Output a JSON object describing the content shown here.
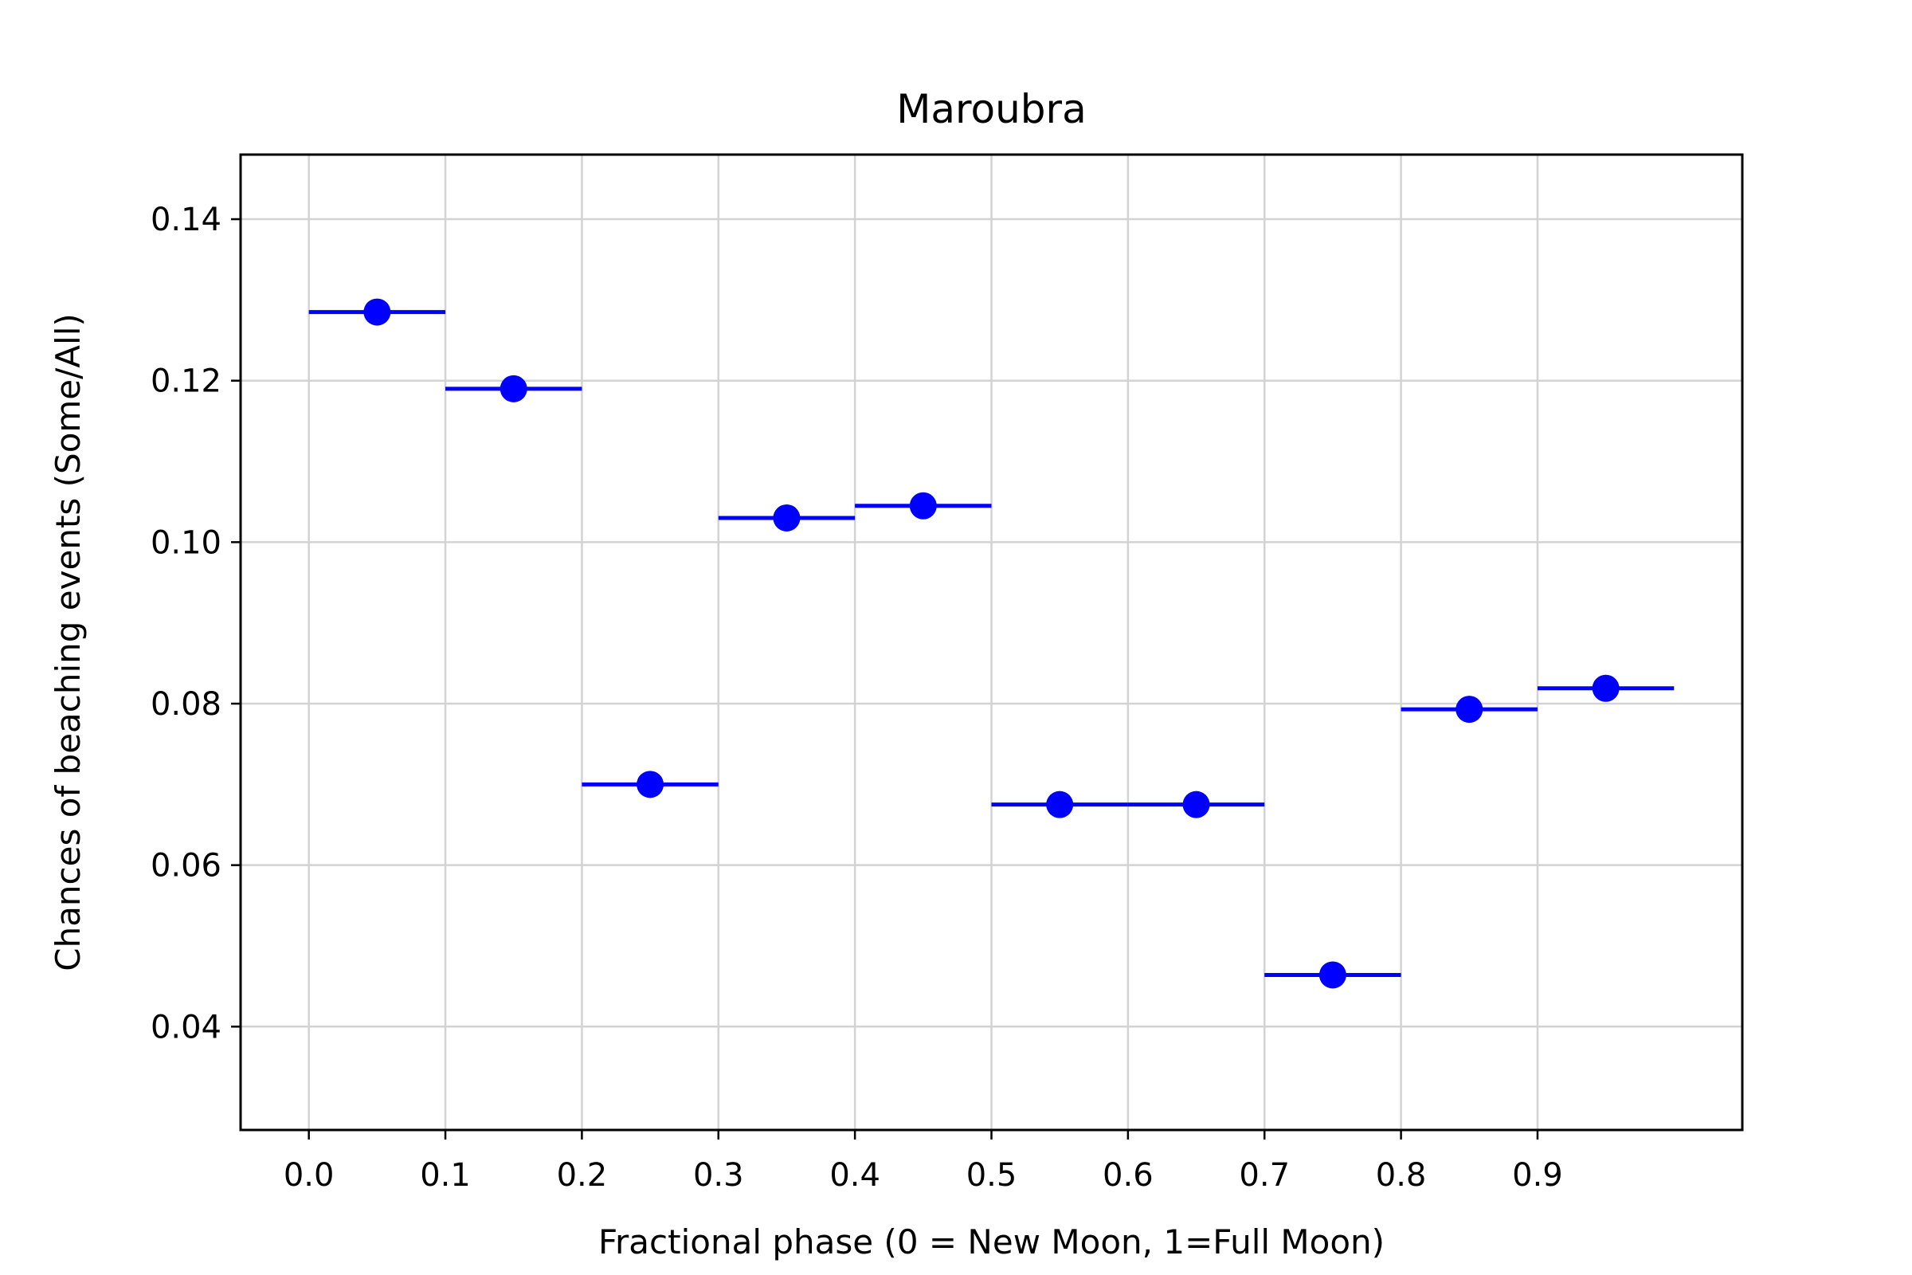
{
  "chart_data": {
    "type": "scatter",
    "title": "Maroubra",
    "xlabel": "Fractional phase (0 = New Moon, 1=Full Moon)",
    "ylabel": "Chances of beaching events (Some/All)",
    "xlim": [
      -0.05,
      1.05
    ],
    "ylim": [
      0.0272,
      0.148
    ],
    "xticks": [
      0.0,
      0.1,
      0.2,
      0.3,
      0.4,
      0.5,
      0.6,
      0.7,
      0.8,
      0.9
    ],
    "xtick_labels": [
      "0.0",
      "0.1",
      "0.2",
      "0.3",
      "0.4",
      "0.5",
      "0.6",
      "0.7",
      "0.8",
      "0.9"
    ],
    "yticks": [
      0.04,
      0.06,
      0.08,
      0.1,
      0.12,
      0.14
    ],
    "ytick_labels": [
      "0.04",
      "0.06",
      "0.08",
      "0.10",
      "0.12",
      "0.14"
    ],
    "grid": true,
    "color": "#0000ff",
    "x": [
      0.05,
      0.15,
      0.25,
      0.35,
      0.45,
      0.55,
      0.65,
      0.75,
      0.85,
      0.95
    ],
    "y": [
      0.1285,
      0.119,
      0.07,
      0.103,
      0.1045,
      0.0675,
      0.0675,
      0.0464,
      0.0793,
      0.0819
    ],
    "xerr": 0.05
  }
}
